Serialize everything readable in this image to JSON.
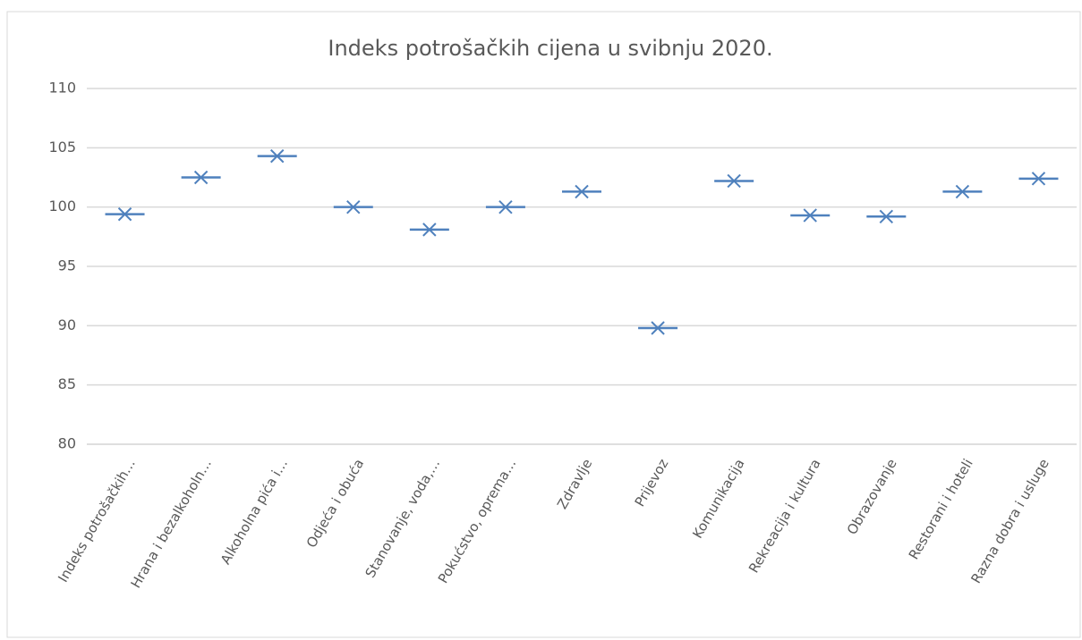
{
  "chart_data": {
    "type": "line",
    "connect": false,
    "marker": "x",
    "color": "#4f81bd",
    "title": "Indeks potrošačkih cijena u svibnju 2020.",
    "categories": [
      "Indeks potrošačkih…",
      "Hrana i bezalkoholn…",
      "Alkoholna pića i…",
      "Odjeća i obuća",
      "Stanovanje, voda,…",
      "Pokućstvo, oprema…",
      "Zdravlje",
      "Prijevoz",
      "Komunikacija",
      "Rekreacija i kultura",
      "Obrazovanje",
      "Restorani i hoteli",
      "Razna dobra i usluge"
    ],
    "values": [
      99.4,
      102.5,
      104.3,
      100.0,
      98.1,
      100.0,
      101.3,
      89.8,
      102.2,
      99.3,
      99.2,
      101.3,
      102.4
    ],
    "ylim": [
      80,
      110
    ],
    "yticks": [
      80,
      85,
      90,
      95,
      100,
      105,
      110
    ],
    "grid": true
  }
}
